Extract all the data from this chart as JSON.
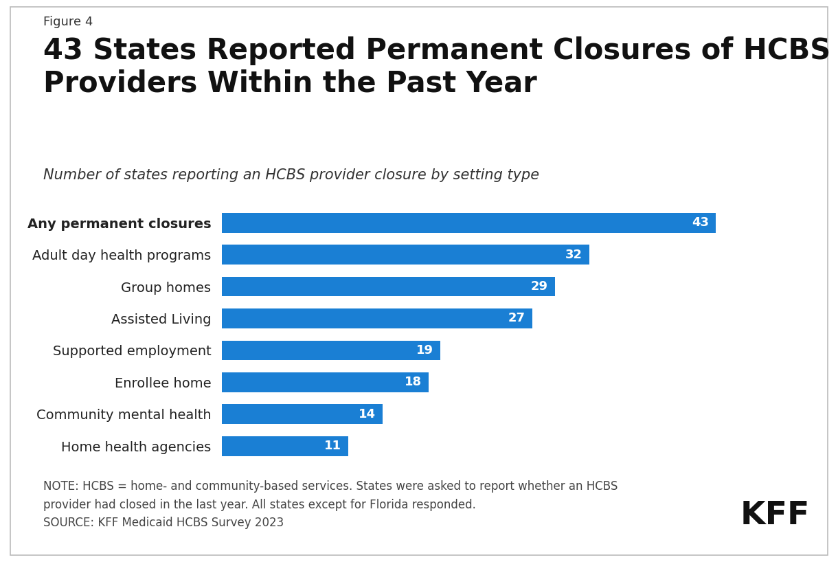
{
  "figure_label": "Figure 4",
  "title": "43 States Reported Permanent Closures of HCBS\nProviders Within the Past Year",
  "subtitle": "Number of states reporting an HCBS provider closure by setting type",
  "categories": [
    "Home health agencies",
    "Community mental health",
    "Enrollee home",
    "Supported employment",
    "Assisted Living",
    "Group homes",
    "Adult day health programs",
    "Any permanent closures"
  ],
  "values": [
    11,
    14,
    18,
    19,
    27,
    29,
    32,
    43
  ],
  "bold_index": 7,
  "bar_color": "#1a7fd4",
  "label_color": "#ffffff",
  "background_color": "#ffffff",
  "border_color": "#cccccc",
  "note_text": "NOTE: HCBS = home- and community-based services. States were asked to report whether an HCBS\nprovider had closed in the last year. All states except for Florida responded.\nSOURCE: KFF Medicaid HCBS Survey 2023",
  "kff_text": "KFF",
  "xlim": [
    0,
    50
  ],
  "figure_label_fontsize": 13,
  "title_fontsize": 30,
  "subtitle_fontsize": 15,
  "category_fontsize": 14,
  "value_fontsize": 13,
  "note_fontsize": 12,
  "kff_fontsize": 34,
  "bar_height": 0.62
}
